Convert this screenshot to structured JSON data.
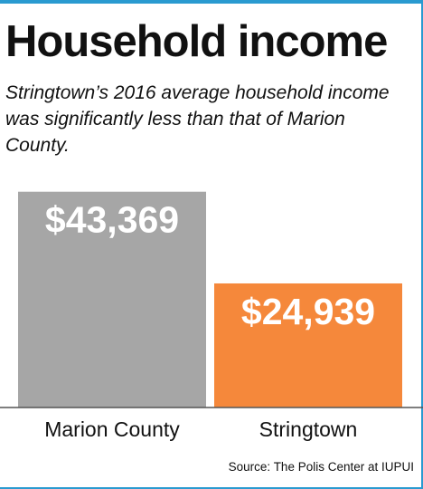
{
  "chart_data": {
    "type": "bar",
    "title": "Household income",
    "subtitle": "Stringtown’s 2016 average household income was significantly less than that of Marion County.",
    "categories": [
      "Marion County",
      "Stringtown"
    ],
    "values": [
      43369,
      24939
    ],
    "value_labels": [
      "$43,369",
      "$24,939"
    ],
    "ylim": [
      0,
      45500
    ],
    "grid": false,
    "legend": "none",
    "colors": [
      "#a6a6a6",
      "#f5883b"
    ],
    "source": "Source: The Polis Center at IUPUI"
  }
}
